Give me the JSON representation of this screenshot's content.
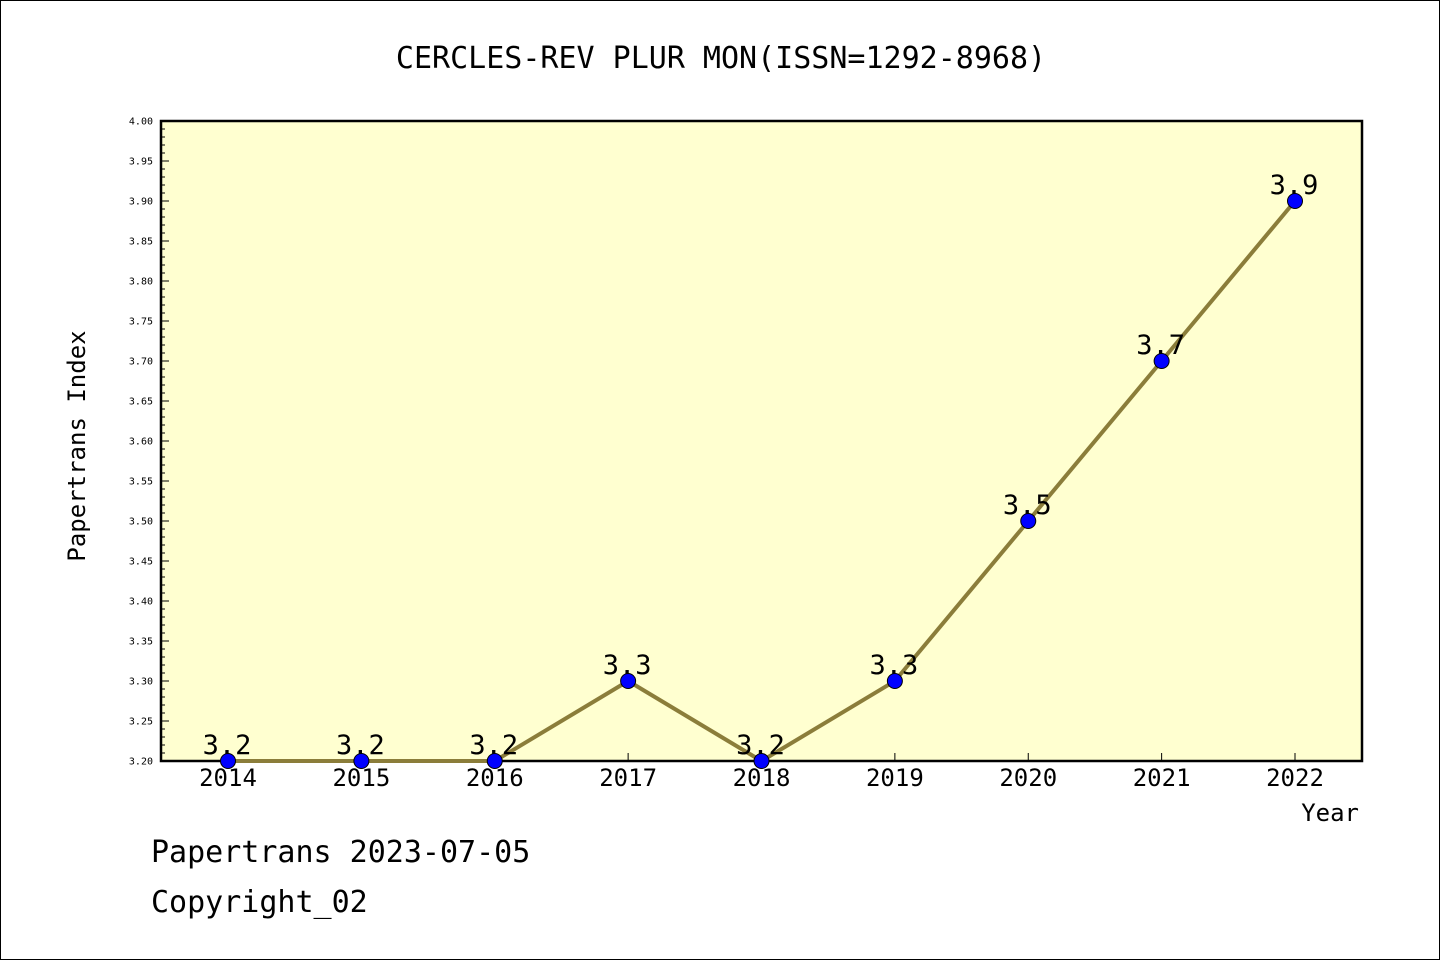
{
  "chart_data": {
    "type": "line",
    "title": "CERCLES-REV PLUR MON(ISSN=1292-8968)",
    "xlabel": "Year",
    "ylabel": "Papertrans Index",
    "categories": [
      "2014",
      "2015",
      "2016",
      "2017",
      "2018",
      "2019",
      "2020",
      "2021",
      "2022"
    ],
    "series": [
      {
        "values": [
          3.2,
          3.2,
          3.2,
          3.3,
          3.2,
          3.3,
          3.5,
          3.7,
          3.9
        ],
        "data_labels": [
          "3.2",
          "3.2",
          "3.2",
          "3.3",
          "3.2",
          "3.3",
          "3.5",
          "3.7",
          "3.9"
        ],
        "line_color": "#8b7d3a",
        "marker_color": "#0000ff"
      }
    ],
    "ylim": [
      3.2,
      4.0
    ],
    "y_ticks": [
      "3.20",
      "3.25",
      "3.30",
      "3.35",
      "3.40",
      "3.45",
      "3.50",
      "3.55",
      "3.60",
      "3.65",
      "3.70",
      "3.75",
      "3.80",
      "3.85",
      "3.90",
      "3.95",
      "4.00"
    ],
    "grid": false,
    "plot_background": "#ffffd0"
  },
  "footer": {
    "line1": "Papertrans 2023-07-05",
    "line2": "Copyright_02"
  }
}
